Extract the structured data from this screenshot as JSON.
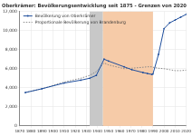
{
  "chart_data": {
    "type": "line",
    "title": "Oberkrämer: Bevölkerungsentwicklung seit 1875 - Grenzen von 2020",
    "x": [
      1875,
      1890,
      1910,
      1925,
      1933,
      1939,
      1946,
      1950,
      1964,
      1971,
      1981,
      1985,
      1989,
      1990,
      1995,
      2000,
      2005,
      2010,
      2015,
      2020
    ],
    "series": [
      {
        "name": "Bevölkerung von Oberkrämer",
        "color": "#1f4e9c",
        "marker": "circle",
        "line_style": "solid",
        "values": [
          3500,
          3900,
          4500,
          4800,
          5000,
          5300,
          7000,
          6800,
          6200,
          5900,
          5600,
          5500,
          5400,
          5450,
          7500,
          10200,
          10800,
          11100,
          11400,
          11700
        ]
      },
      {
        "name": "Proportionale Bevölkerung von Brandenburg",
        "color": "#888888",
        "marker": "none",
        "line_style": "dotted",
        "values": [
          3500,
          3900,
          4600,
          5000,
          5300,
          5700,
          6600,
          6400,
          6000,
          6050,
          6150,
          6200,
          6200,
          6150,
          6050,
          6000,
          5900,
          5800,
          5800,
          5850
        ]
      }
    ],
    "shaded_periods": [
      {
        "from": 1933,
        "to": 1945,
        "color": "#c8c8c8"
      },
      {
        "from": 1945,
        "to": 1990,
        "color": "#f6cba8"
      }
    ],
    "xlim": [
      1870,
      2020
    ],
    "xticks": [
      1870,
      1880,
      1890,
      1900,
      1910,
      1920,
      1930,
      1940,
      1950,
      1960,
      1970,
      1980,
      1990,
      2000,
      2010,
      2020
    ],
    "ylim": [
      0,
      12000
    ],
    "yticks": [
      0,
      {
        "value": 2000,
        "label": "2,000"
      },
      {
        "value": 4000,
        "label": "4,000"
      },
      {
        "value": 6000,
        "label": "6,000"
      },
      {
        "value": 8000,
        "label": "8,000"
      },
      {
        "value": 10000,
        "label": "10,000"
      },
      {
        "value": 12000,
        "label": "12,000"
      }
    ],
    "grid": true,
    "legend": "upper left"
  }
}
